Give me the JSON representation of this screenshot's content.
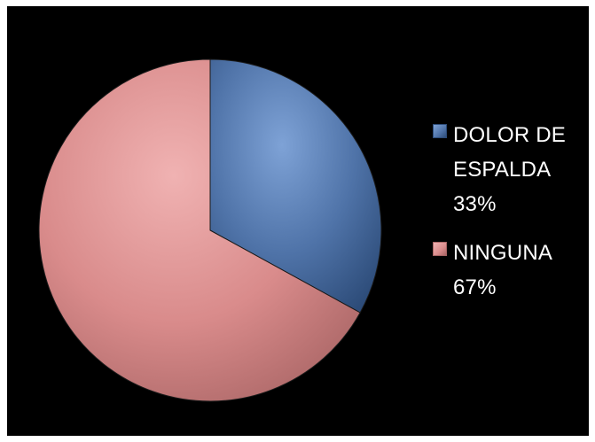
{
  "chart_data": {
    "type": "pie",
    "title": "",
    "legend_position": "right",
    "background": "#000000",
    "series": [
      {
        "label_lines": [
          "DOLOR DE",
          "ESPALDA"
        ],
        "value_label": "33%",
        "value": 33,
        "color": "#4f73a8",
        "highlight": "#7ea2d6",
        "shadow": "#2d4c79"
      },
      {
        "label_lines": [
          "NINGUNA"
        ],
        "value_label": "67%",
        "value": 67,
        "color": "#d98b8b",
        "highlight": "#f0b2b2",
        "shadow": "#a96565"
      }
    ]
  }
}
